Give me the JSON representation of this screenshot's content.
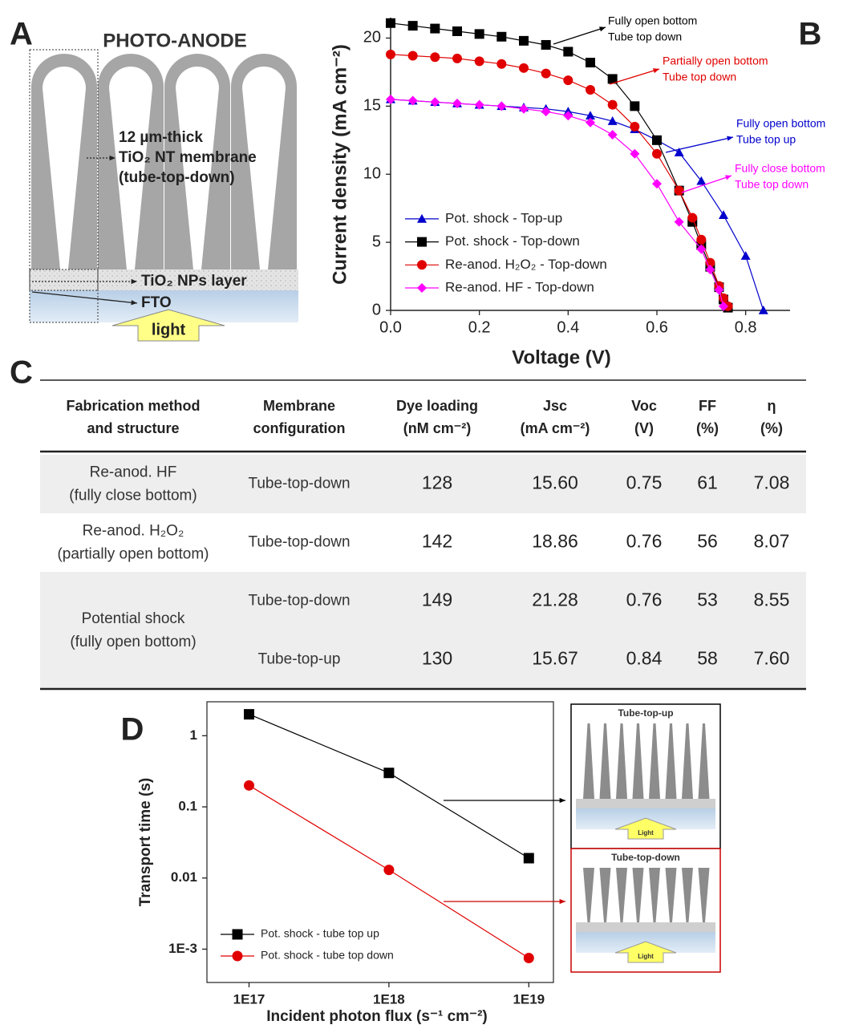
{
  "panel_a": {
    "label": "A",
    "title": "PHOTO-ANODE",
    "membrane": [
      "12 µm-thick",
      "TiO₂ NT membrane",
      "(tube-top-down)"
    ],
    "nps_layer": "TiO₂ NPs layer",
    "fto": "FTO",
    "light": "light"
  },
  "chart_data": [
    {
      "type": "line",
      "label": "B",
      "y_label": "Current density (mA cm⁻²)",
      "x_label": "Voltage (V)",
      "xlim": [
        0,
        0.9
      ],
      "ylim": [
        0,
        21.5
      ],
      "xticks": [
        {
          "value": 0,
          "label": "0.0"
        },
        0.2,
        0.4,
        0.6,
        0.8
      ],
      "yticks": [
        0,
        5,
        10,
        15,
        20
      ],
      "legend": "lower left",
      "series": [
        {
          "name": "Pot. shock - Top-up",
          "color": "#0000cc",
          "marker": "triangle",
          "x": [
            0,
            0.05,
            0.1,
            0.15,
            0.2,
            0.25,
            0.3,
            0.35,
            0.4,
            0.45,
            0.5,
            0.55,
            0.6,
            0.65,
            0.7,
            0.75,
            0.8,
            0.84
          ],
          "values": [
            15.5,
            15.4,
            15.3,
            15.2,
            15.1,
            15.0,
            14.9,
            14.8,
            14.6,
            14.3,
            13.9,
            13.3,
            12.5,
            11.6,
            9.5,
            7.0,
            4.0,
            0.0
          ]
        },
        {
          "name": "Pot. shock - Top-down",
          "color": "#000000",
          "marker": "square",
          "x": [
            0,
            0.05,
            0.1,
            0.15,
            0.2,
            0.25,
            0.3,
            0.35,
            0.4,
            0.45,
            0.5,
            0.55,
            0.6,
            0.65,
            0.68,
            0.7,
            0.72,
            0.74,
            0.75,
            0.76
          ],
          "values": [
            21.1,
            20.9,
            20.7,
            20.5,
            20.3,
            20.1,
            19.8,
            19.5,
            19.0,
            18.2,
            17.0,
            15.0,
            12.5,
            8.8,
            6.5,
            4.8,
            3.2,
            1.7,
            0.8,
            0.2
          ]
        },
        {
          "name": "Re-anod. H₂O₂ - Top-down",
          "color": "#e00000",
          "marker": "circle",
          "x": [
            0,
            0.05,
            0.1,
            0.15,
            0.2,
            0.25,
            0.3,
            0.35,
            0.4,
            0.45,
            0.5,
            0.55,
            0.6,
            0.65,
            0.68,
            0.7,
            0.72,
            0.74,
            0.75,
            0.76
          ],
          "values": [
            18.8,
            18.7,
            18.6,
            18.5,
            18.3,
            18.1,
            17.8,
            17.4,
            16.9,
            16.2,
            15.1,
            13.5,
            11.5,
            8.8,
            6.8,
            5.2,
            3.5,
            1.8,
            0.9,
            0.3
          ]
        },
        {
          "name": "Re-anod. HF - Top-down",
          "color": "#ff00ff",
          "marker": "diamond",
          "x": [
            0,
            0.05,
            0.1,
            0.15,
            0.2,
            0.25,
            0.3,
            0.35,
            0.4,
            0.45,
            0.5,
            0.55,
            0.6,
            0.65,
            0.7,
            0.72,
            0.74,
            0.75
          ],
          "values": [
            15.5,
            15.4,
            15.3,
            15.2,
            15.1,
            15.0,
            14.8,
            14.6,
            14.3,
            13.8,
            12.9,
            11.5,
            9.3,
            6.5,
            4.5,
            3.0,
            1.5,
            0.3
          ]
        }
      ],
      "annotations": [
        {
          "lines": [
            "Fully open bottom",
            "Tube top down"
          ],
          "color": "#000000"
        },
        {
          "lines": [
            "Partially open bottom",
            "Tube top down"
          ],
          "color": "#e00000"
        },
        {
          "lines": [
            "Fully open bottom",
            "Tube top up"
          ],
          "color": "#0000cc"
        },
        {
          "lines": [
            "Fully close bottom",
            "Tube top down"
          ],
          "color": "#ff00ff"
        }
      ]
    },
    {
      "type": "line",
      "label": "D",
      "y_label": "Transport time (s)",
      "x_label": "Incident photon flux (s⁻¹ cm⁻²)",
      "xscale": "log",
      "yscale": "log",
      "frame": true,
      "xlim": [
        5e+16,
        1.5e+19
      ],
      "ylim": [
        0.00034,
        3
      ],
      "xticks": [
        {
          "value": 1e+17,
          "label": "1E17"
        },
        {
          "value": 1e+18,
          "label": "1E18"
        },
        {
          "value": 1e+19,
          "label": "1E19"
        }
      ],
      "yticks": [
        {
          "value": 0.001,
          "label": "1E-3"
        },
        0.01,
        0.1,
        1
      ],
      "x": [
        1e+17,
        1e+18,
        1e+19
      ],
      "legend": "lower left",
      "series": [
        {
          "name": "Pot. shock - tube top up",
          "color": "#000000",
          "marker": "square",
          "values": [
            2.0,
            0.3,
            0.019
          ]
        },
        {
          "name": "Pot. shock - tube top down",
          "color": "#e00000",
          "marker": "circle",
          "values": [
            0.2,
            0.013,
            0.00075
          ]
        }
      ],
      "insets": [
        {
          "title": "Tube-top-up",
          "light": "Light",
          "color": "#000000"
        },
        {
          "title": "Tube-top-down",
          "light": "Light",
          "color": "#cc0000"
        }
      ]
    }
  ],
  "table": {
    "label": "C",
    "header": [
      [
        "Fabrication method",
        "and structure"
      ],
      [
        "Membrane",
        "configuration"
      ],
      [
        "Dye loading",
        "(nM cm⁻²)"
      ],
      [
        "Jsc",
        "(mA cm⁻²)"
      ],
      [
        "Voc",
        "(V)"
      ],
      [
        "FF",
        "(%)"
      ],
      [
        "η",
        "(%)"
      ]
    ],
    "groups": [
      {
        "method": [
          "Re-anod. HF",
          "(fully close bottom)"
        ],
        "rows": [
          [
            "Tube-top-down",
            "128",
            "15.60",
            "0.75",
            "61",
            "7.08"
          ]
        ]
      },
      {
        "method": [
          "Re-anod. H₂O₂",
          "(partially open bottom)"
        ],
        "rows": [
          [
            "Tube-top-down",
            "142",
            "18.86",
            "0.76",
            "56",
            "8.07"
          ]
        ]
      },
      {
        "method": [
          "Potential shock",
          "(fully open bottom)"
        ],
        "rows": [
          [
            "Tube-top-down",
            "149",
            "21.28",
            "0.76",
            "53",
            "8.55"
          ],
          [
            "Tube-top-up",
            "130",
            "15.67",
            "0.84",
            "58",
            "7.60"
          ]
        ]
      }
    ]
  }
}
